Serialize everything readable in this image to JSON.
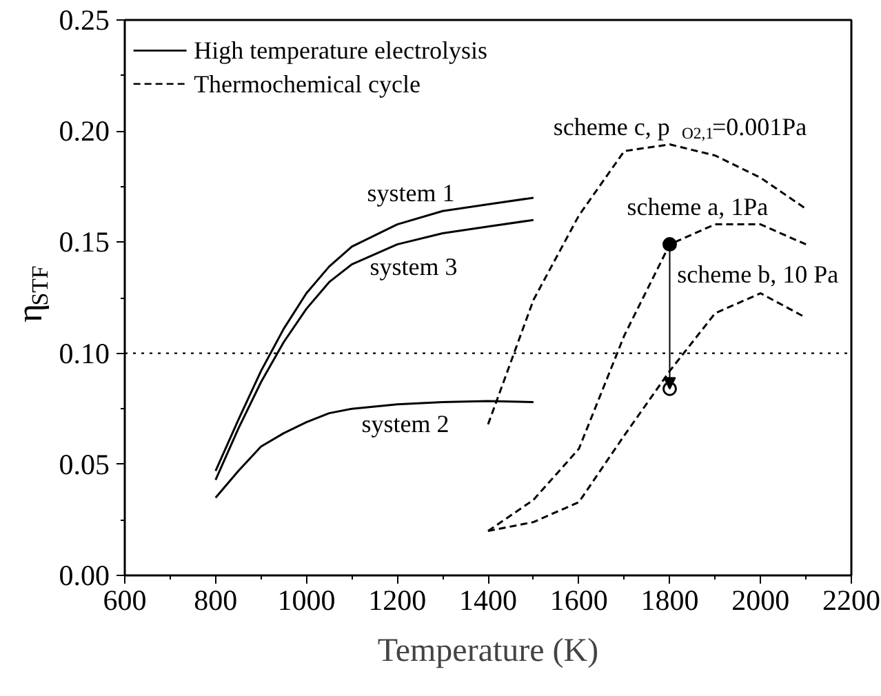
{
  "chart_data": {
    "type": "line",
    "xlabel": "Temperature (K)",
    "ylabel": "η$_{STF}$",
    "xlim": [
      600,
      2200
    ],
    "ylim": [
      0,
      0.25
    ],
    "xticks": [
      600,
      800,
      1000,
      1200,
      1400,
      1600,
      1800,
      2000,
      2200
    ],
    "yticks": [
      {
        "value": 0,
        "label": "0.00"
      },
      {
        "value": 0.05,
        "label": "0.05"
      },
      {
        "value": 0.1,
        "label": "0.10"
      },
      {
        "value": 0.15,
        "label": "0.15"
      },
      {
        "value": 0.2,
        "label": "0.20"
      },
      {
        "value": 0.25,
        "label": "0.25"
      }
    ],
    "grid": false,
    "ref_lines": [
      {
        "axis": "y",
        "value": 0.1,
        "line_style": "dotted",
        "color": "#000000"
      }
    ],
    "annotations": [
      "High temperature electrolysis",
      "Thermochemical cycle"
    ],
    "series": [
      {
        "name": "system 1",
        "line_style": "solid",
        "color": "#000000",
        "x": [
          800,
          850,
          900,
          950,
          1000,
          1050,
          1100,
          1200,
          1300,
          1400,
          1500
        ],
        "values": [
          0.047,
          0.07,
          0.092,
          0.111,
          0.127,
          0.139,
          0.148,
          0.158,
          0.164,
          0.167,
          0.17
        ]
      },
      {
        "name": "system 2",
        "line_style": "solid",
        "color": "#000000",
        "x": [
          800,
          850,
          900,
          950,
          1000,
          1050,
          1100,
          1200,
          1300,
          1400,
          1500
        ],
        "values": [
          0.035,
          0.047,
          0.058,
          0.064,
          0.069,
          0.073,
          0.075,
          0.077,
          0.078,
          0.0785,
          0.078
        ]
      },
      {
        "name": "system 3",
        "line_style": "solid",
        "color": "#000000",
        "x": [
          800,
          850,
          900,
          950,
          1000,
          1050,
          1100,
          1200,
          1300,
          1400,
          1500
        ],
        "values": [
          0.043,
          0.066,
          0.087,
          0.105,
          0.12,
          0.132,
          0.14,
          0.149,
          0.154,
          0.157,
          0.16
        ]
      },
      {
        "name": "scheme c, p$_{O2,1}$=0.001Pa",
        "line_style": "dashed",
        "color": "#000000",
        "x": [
          1400,
          1500,
          1600,
          1700,
          1800,
          1900,
          2000,
          2100
        ],
        "values": [
          0.068,
          0.124,
          0.162,
          0.191,
          0.194,
          0.189,
          0.179,
          0.165
        ]
      },
      {
        "name": "scheme a, 1Pa",
        "line_style": "dashed",
        "color": "#000000",
        "x": [
          1400,
          1500,
          1600,
          1700,
          1800,
          1900,
          2000,
          2100
        ],
        "values": [
          0.02,
          0.034,
          0.057,
          0.108,
          0.149,
          0.158,
          0.158,
          0.149
        ]
      },
      {
        "name": "scheme b, 10 Pa",
        "line_style": "dashed",
        "color": "#000000",
        "x": [
          1400,
          1500,
          1600,
          1700,
          1800,
          1900,
          2000,
          2100
        ],
        "values": [
          0.02,
          0.024,
          0.033,
          0.063,
          0.092,
          0.118,
          0.127,
          0.116
        ]
      },
      {
        "type": "scatter",
        "marker": "circle",
        "color": "#000000",
        "x": [
          1800,
          1800
        ],
        "values": [
          0.149,
          0.084
        ],
        "colors": [
          "#000000",
          "#ffffff"
        ]
      }
    ]
  }
}
